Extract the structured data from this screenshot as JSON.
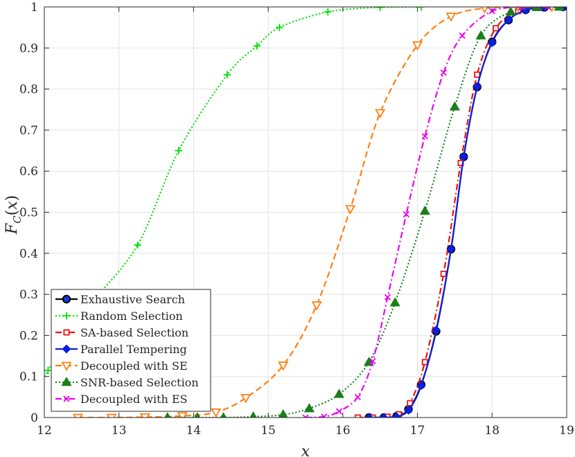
{
  "chart_data": {
    "type": "line",
    "title": "",
    "xlabel": "x",
    "ylabel": "F_C(x)",
    "xlim": [
      12,
      19
    ],
    "ylim": [
      0,
      1
    ],
    "grid": true,
    "legend_position": "bottom-left",
    "x_ticks": [
      "12",
      "13",
      "14",
      "15",
      "16",
      "17",
      "18",
      "19"
    ],
    "y_ticks": [
      "0",
      "0.1",
      "0.2",
      "0.3",
      "0.4",
      "0.5",
      "0.6",
      "0.7",
      "0.8",
      "0.9",
      "1"
    ],
    "series": [
      {
        "name": "Exhaustive Search",
        "color": "#000000",
        "dash": "solid",
        "marker": "circle",
        "points": [
          [
            16.35,
            0.0
          ],
          [
            16.55,
            0.0
          ],
          [
            16.72,
            0.003
          ],
          [
            16.88,
            0.02
          ],
          [
            17.05,
            0.08
          ],
          [
            17.25,
            0.21
          ],
          [
            17.45,
            0.41
          ],
          [
            17.62,
            0.635
          ],
          [
            17.8,
            0.805
          ],
          [
            18.0,
            0.915
          ],
          [
            18.22,
            0.968
          ],
          [
            18.45,
            0.993
          ],
          [
            18.7,
            0.999
          ],
          [
            18.95,
            1.0
          ]
        ]
      },
      {
        "name": "Random Selection",
        "color": "#00e000",
        "dash": "dotted",
        "marker": "plus",
        "points": [
          [
            11.75,
            0.0
          ],
          [
            12.05,
            0.115
          ],
          [
            12.6,
            0.27
          ],
          [
            13.25,
            0.42
          ],
          [
            13.8,
            0.65
          ],
          [
            14.45,
            0.835
          ],
          [
            14.85,
            0.905
          ],
          [
            15.15,
            0.95
          ],
          [
            15.8,
            0.988
          ],
          [
            16.5,
            0.999
          ],
          [
            17.05,
            1.0
          ]
        ]
      },
      {
        "name": "SA-based Selection",
        "color": "#ee1010",
        "dash": "dashdot",
        "marker": "square",
        "points": [
          [
            16.2,
            0.0
          ],
          [
            16.4,
            0.0
          ],
          [
            16.6,
            0.002
          ],
          [
            16.75,
            0.008
          ],
          [
            16.9,
            0.035
          ],
          [
            17.1,
            0.135
          ],
          [
            17.35,
            0.35
          ],
          [
            17.58,
            0.62
          ],
          [
            17.8,
            0.835
          ],
          [
            18.05,
            0.948
          ],
          [
            18.35,
            0.99
          ],
          [
            18.65,
            1.0
          ]
        ]
      },
      {
        "name": "Parallel Tempering",
        "color": "#0a1fe0",
        "dash": "solid",
        "marker": "diamond",
        "points": [
          [
            16.35,
            0.0
          ],
          [
            16.55,
            0.0
          ],
          [
            16.72,
            0.002
          ],
          [
            16.88,
            0.018
          ],
          [
            17.05,
            0.078
          ],
          [
            17.25,
            0.213
          ],
          [
            17.45,
            0.41
          ],
          [
            17.62,
            0.635
          ],
          [
            17.8,
            0.806
          ],
          [
            18.0,
            0.913
          ],
          [
            18.22,
            0.968
          ],
          [
            18.45,
            0.992
          ],
          [
            18.7,
            0.999
          ],
          [
            18.95,
            1.0
          ]
        ]
      },
      {
        "name": "Decoupled with SE",
        "color": "#ff7f0e",
        "dash": "dashed",
        "marker": "triangle-down",
        "points": [
          [
            12.45,
            0.0
          ],
          [
            12.9,
            0.0
          ],
          [
            13.35,
            0.001
          ],
          [
            13.85,
            0.004
          ],
          [
            14.3,
            0.013
          ],
          [
            14.7,
            0.048
          ],
          [
            15.2,
            0.127
          ],
          [
            15.65,
            0.274
          ],
          [
            16.1,
            0.508
          ],
          [
            16.5,
            0.742
          ],
          [
            17.0,
            0.907
          ],
          [
            17.45,
            0.977
          ],
          [
            17.9,
            0.997
          ],
          [
            18.35,
            1.0
          ],
          [
            18.8,
            1.0
          ]
        ]
      },
      {
        "name": "SNR-based Selection",
        "color": "#1a7f1a",
        "dash": "dotted",
        "marker": "triangle-up",
        "points": [
          [
            13.65,
            0.0
          ],
          [
            14.05,
            0.0
          ],
          [
            14.4,
            0.0
          ],
          [
            14.8,
            0.002
          ],
          [
            15.2,
            0.007
          ],
          [
            15.55,
            0.022
          ],
          [
            15.95,
            0.057
          ],
          [
            16.35,
            0.135
          ],
          [
            16.7,
            0.28
          ],
          [
            17.1,
            0.503
          ],
          [
            17.5,
            0.757
          ],
          [
            17.85,
            0.93
          ],
          [
            18.25,
            0.988
          ],
          [
            18.6,
            0.999
          ],
          [
            18.9,
            1.0
          ]
        ]
      },
      {
        "name": "Decoupled with ES",
        "color": "#ee00ee",
        "dash": "dashdot",
        "marker": "x",
        "points": [
          [
            15.5,
            0.0
          ],
          [
            15.75,
            0.002
          ],
          [
            15.95,
            0.015
          ],
          [
            16.2,
            0.05
          ],
          [
            16.4,
            0.137
          ],
          [
            16.6,
            0.293
          ],
          [
            16.85,
            0.495
          ],
          [
            17.1,
            0.685
          ],
          [
            17.35,
            0.84
          ],
          [
            17.6,
            0.93
          ],
          [
            18.0,
            0.99
          ],
          [
            18.4,
            1.0
          ],
          [
            18.75,
            1.0
          ]
        ]
      }
    ]
  }
}
